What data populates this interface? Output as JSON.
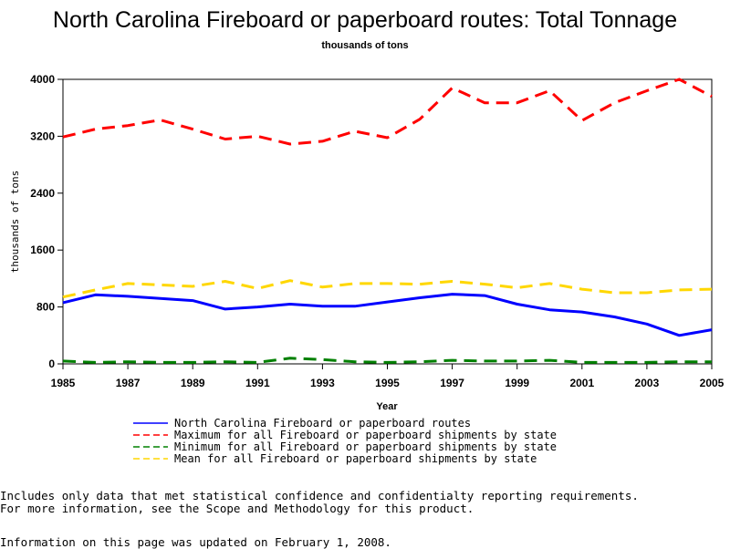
{
  "chart_data": {
    "type": "line",
    "title": "North Carolina Fireboard or paperboard routes: Total Tonnage",
    "subtitle": "thousands of tons",
    "xlabel": "Year",
    "ylabel": "thousands of tons",
    "xlim": [
      1985,
      2005
    ],
    "ylim": [
      0,
      4000
    ],
    "x_ticks": [
      "1985",
      "1987",
      "1989",
      "1991",
      "1993",
      "1995",
      "1997",
      "1999",
      "2001",
      "2003",
      "2005"
    ],
    "y_ticks": [
      "0",
      "800",
      "1600",
      "2400",
      "3200",
      "4000"
    ],
    "x": [
      1985,
      1986,
      1987,
      1988,
      1989,
      1990,
      1991,
      1992,
      1993,
      1994,
      1995,
      1996,
      1997,
      1998,
      1999,
      2000,
      2001,
      2002,
      2003,
      2004,
      2005
    ],
    "series": [
      {
        "name": "North Carolina Fireboard or paperboard routes",
        "color": "#0000ff",
        "dash": "solid",
        "values": [
          860,
          970,
          950,
          920,
          890,
          770,
          800,
          840,
          810,
          810,
          870,
          930,
          980,
          960,
          840,
          760,
          730,
          660,
          560,
          400,
          480
        ]
      },
      {
        "name": "Maximum for all Fireboard or paperboard shipments by state",
        "color": "#ff0000",
        "dash": "dashed",
        "values": [
          3190,
          3300,
          3350,
          3430,
          3300,
          3160,
          3200,
          3090,
          3130,
          3270,
          3180,
          3440,
          3880,
          3670,
          3670,
          3840,
          3420,
          3670,
          3840,
          4000,
          3760
        ]
      },
      {
        "name": "Minimum for all Fireboard or paperboard shipments by state",
        "color": "#008000",
        "dash": "dashed",
        "values": [
          40,
          20,
          30,
          20,
          20,
          30,
          20,
          80,
          60,
          30,
          20,
          30,
          50,
          40,
          40,
          50,
          20,
          20,
          20,
          30,
          30
        ]
      },
      {
        "name": "Mean for all Fireboard or paperboard shipments by state",
        "color": "#ffd700",
        "dash": "dashed",
        "values": [
          940,
          1040,
          1130,
          1110,
          1090,
          1160,
          1060,
          1170,
          1080,
          1130,
          1130,
          1120,
          1160,
          1120,
          1070,
          1130,
          1050,
          1000,
          1000,
          1040,
          1050
        ]
      }
    ],
    "grid": false,
    "legend_position": "bottom"
  },
  "footer": {
    "note_line_1": "Includes only data that met statistical confidence and confidentialty reporting requirements.",
    "note_line_2": "For more information, see the Scope and Methodology for this product.",
    "updated": "Information on this page was updated on February 1, 2008."
  }
}
